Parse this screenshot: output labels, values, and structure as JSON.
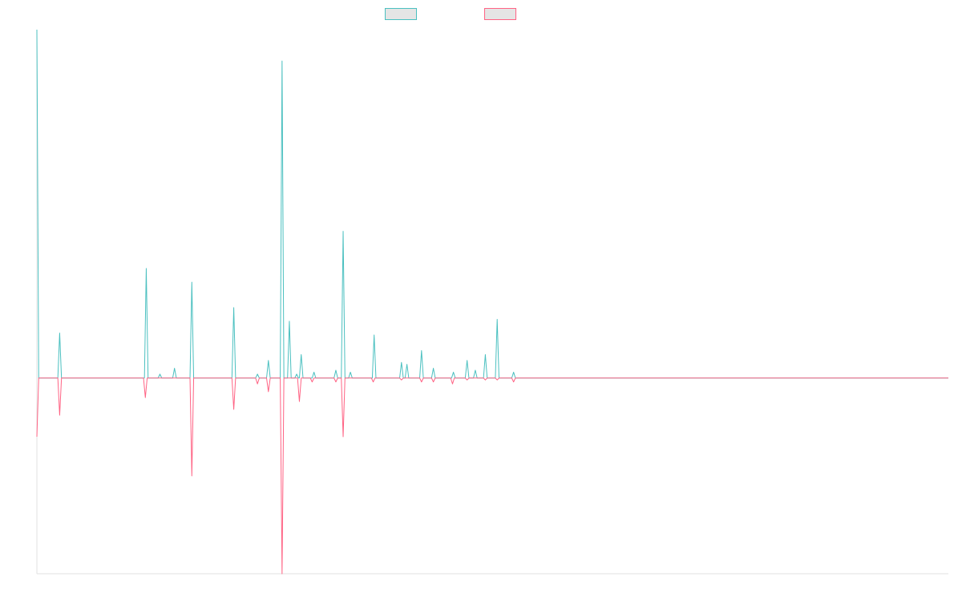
{
  "chart_data": {
    "type": "line",
    "title": "",
    "xlabel": "",
    "ylabel": "",
    "legend": {
      "placement": "top-center",
      "show": true
    },
    "grid": false,
    "colors": {
      "series_0": "#4bc0c0",
      "series_1": "#ff6384",
      "axis": "#e0e0e0",
      "legend_fill": "#e5e5e5"
    },
    "x_domain": [
      0,
      1000
    ],
    "ylim": [
      -1.0,
      1.78
    ],
    "series": [
      {
        "values": [
          [
            0,
            1.78
          ],
          [
            2,
            0
          ],
          [
            23,
            0
          ],
          [
            25,
            0.23
          ],
          [
            27,
            0
          ],
          [
            118,
            0
          ],
          [
            120,
            0.56
          ],
          [
            122,
            0
          ],
          [
            133,
            0
          ],
          [
            135,
            0.02
          ],
          [
            137,
            0
          ],
          [
            149,
            0
          ],
          [
            151,
            0.05
          ],
          [
            153,
            0
          ],
          [
            168,
            0
          ],
          [
            170,
            0.49
          ],
          [
            172,
            0
          ],
          [
            214,
            0
          ],
          [
            216,
            0.36
          ],
          [
            218,
            0
          ],
          [
            240,
            0
          ],
          [
            242,
            0.02
          ],
          [
            244,
            0
          ],
          [
            252,
            0
          ],
          [
            254,
            0.09
          ],
          [
            256,
            0
          ],
          [
            267,
            0
          ],
          [
            269,
            1.62
          ],
          [
            271,
            0
          ],
          [
            275,
            0
          ],
          [
            277,
            0.29
          ],
          [
            279,
            0
          ],
          [
            283,
            0
          ],
          [
            285,
            0.02
          ],
          [
            287,
            0
          ],
          [
            288,
            0
          ],
          [
            290,
            0.12
          ],
          [
            292,
            0
          ],
          [
            302,
            0
          ],
          [
            304,
            0.03
          ],
          [
            306,
            0
          ],
          [
            326,
            0
          ],
          [
            328,
            0.04
          ],
          [
            330,
            0
          ],
          [
            334,
            0
          ],
          [
            336,
            0.75
          ],
          [
            338,
            0
          ],
          [
            342,
            0
          ],
          [
            344,
            0.03
          ],
          [
            346,
            0
          ],
          [
            368,
            0
          ],
          [
            370,
            0.22
          ],
          [
            372,
            0
          ],
          [
            398,
            0
          ],
          [
            400,
            0.08
          ],
          [
            402,
            0
          ],
          [
            404,
            0
          ],
          [
            406,
            0.07
          ],
          [
            408,
            0
          ],
          [
            420,
            0
          ],
          [
            422,
            0.14
          ],
          [
            424,
            0
          ],
          [
            433,
            0
          ],
          [
            435,
            0.05
          ],
          [
            437,
            0
          ],
          [
            455,
            0
          ],
          [
            457,
            0.03
          ],
          [
            459,
            0
          ],
          [
            470,
            0
          ],
          [
            472,
            0.09
          ],
          [
            474,
            0
          ],
          [
            479,
            0
          ],
          [
            481,
            0.04
          ],
          [
            483,
            0
          ],
          [
            490,
            0
          ],
          [
            492,
            0.12
          ],
          [
            494,
            0
          ],
          [
            503,
            0
          ],
          [
            505,
            0.3
          ],
          [
            507,
            0
          ],
          [
            521,
            0
          ],
          [
            523,
            0.03
          ],
          [
            525,
            0
          ],
          [
            1000,
            0
          ]
        ]
      },
      {
        "values": [
          [
            0,
            -0.3
          ],
          [
            2,
            0
          ],
          [
            23,
            0
          ],
          [
            25,
            -0.19
          ],
          [
            27,
            0
          ],
          [
            117,
            0
          ],
          [
            119,
            -0.1
          ],
          [
            121,
            0
          ],
          [
            168,
            0
          ],
          [
            170,
            -0.5
          ],
          [
            172,
            0
          ],
          [
            214,
            0
          ],
          [
            216,
            -0.16
          ],
          [
            218,
            0
          ],
          [
            240,
            0
          ],
          [
            242,
            -0.03
          ],
          [
            244,
            0
          ],
          [
            252,
            0
          ],
          [
            254,
            -0.07
          ],
          [
            256,
            0
          ],
          [
            267,
            0
          ],
          [
            269,
            -1.0
          ],
          [
            271,
            0
          ],
          [
            286,
            0
          ],
          [
            288,
            -0.12
          ],
          [
            290,
            0
          ],
          [
            300,
            0
          ],
          [
            302,
            -0.02
          ],
          [
            304,
            0
          ],
          [
            326,
            0
          ],
          [
            328,
            -0.02
          ],
          [
            330,
            0
          ],
          [
            334,
            0
          ],
          [
            336,
            -0.3
          ],
          [
            338,
            0
          ],
          [
            367,
            0
          ],
          [
            369,
            -0.02
          ],
          [
            371,
            0
          ],
          [
            398,
            0
          ],
          [
            400,
            -0.01
          ],
          [
            402,
            0
          ],
          [
            420,
            0
          ],
          [
            422,
            -0.02
          ],
          [
            424,
            0
          ],
          [
            433,
            0
          ],
          [
            435,
            -0.02
          ],
          [
            437,
            0
          ],
          [
            454,
            0
          ],
          [
            456,
            -0.03
          ],
          [
            458,
            0
          ],
          [
            470,
            0
          ],
          [
            472,
            -0.01
          ],
          [
            474,
            0
          ],
          [
            490,
            0
          ],
          [
            492,
            -0.01
          ],
          [
            494,
            0
          ],
          [
            503,
            0
          ],
          [
            505,
            -0.01
          ],
          [
            507,
            0
          ],
          [
            521,
            0
          ],
          [
            523,
            -0.02
          ],
          [
            525,
            0
          ],
          [
            1000,
            0
          ]
        ]
      }
    ]
  }
}
